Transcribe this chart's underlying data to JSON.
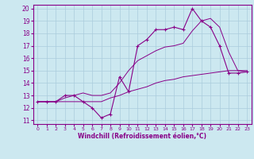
{
  "xlabel": "Windchill (Refroidissement éolien,°C)",
  "ylabel": "",
  "bg_color": "#cce8f0",
  "grid_color": "#aaccdd",
  "line_color": "#880088",
  "xlim": [
    -0.5,
    23.5
  ],
  "ylim": [
    10.7,
    20.3
  ],
  "yticks": [
    11,
    12,
    13,
    14,
    15,
    16,
    17,
    18,
    19,
    20
  ],
  "xticks": [
    0,
    1,
    2,
    3,
    4,
    5,
    6,
    7,
    8,
    9,
    10,
    11,
    12,
    13,
    14,
    15,
    16,
    17,
    18,
    19,
    20,
    21,
    22,
    23
  ],
  "series_main": [
    12.5,
    12.5,
    12.5,
    13.0,
    13.0,
    12.5,
    12.0,
    11.2,
    11.5,
    14.5,
    13.3,
    17.0,
    17.5,
    18.3,
    18.3,
    18.5,
    18.3,
    20.0,
    19.0,
    18.5,
    17.0,
    14.8,
    14.8,
    14.9
  ],
  "series_low": [
    12.5,
    12.5,
    12.5,
    12.5,
    12.5,
    12.5,
    12.5,
    12.5,
    12.8,
    13.0,
    13.3,
    13.5,
    13.7,
    14.0,
    14.2,
    14.3,
    14.5,
    14.6,
    14.7,
    14.8,
    14.9,
    15.0,
    15.0,
    15.0
  ],
  "series_high": [
    12.5,
    12.5,
    12.5,
    12.8,
    13.0,
    13.2,
    13.0,
    13.0,
    13.2,
    14.0,
    15.0,
    15.8,
    16.2,
    16.6,
    16.9,
    17.0,
    17.2,
    18.2,
    19.0,
    19.2,
    18.5,
    16.5,
    15.0,
    14.9
  ]
}
